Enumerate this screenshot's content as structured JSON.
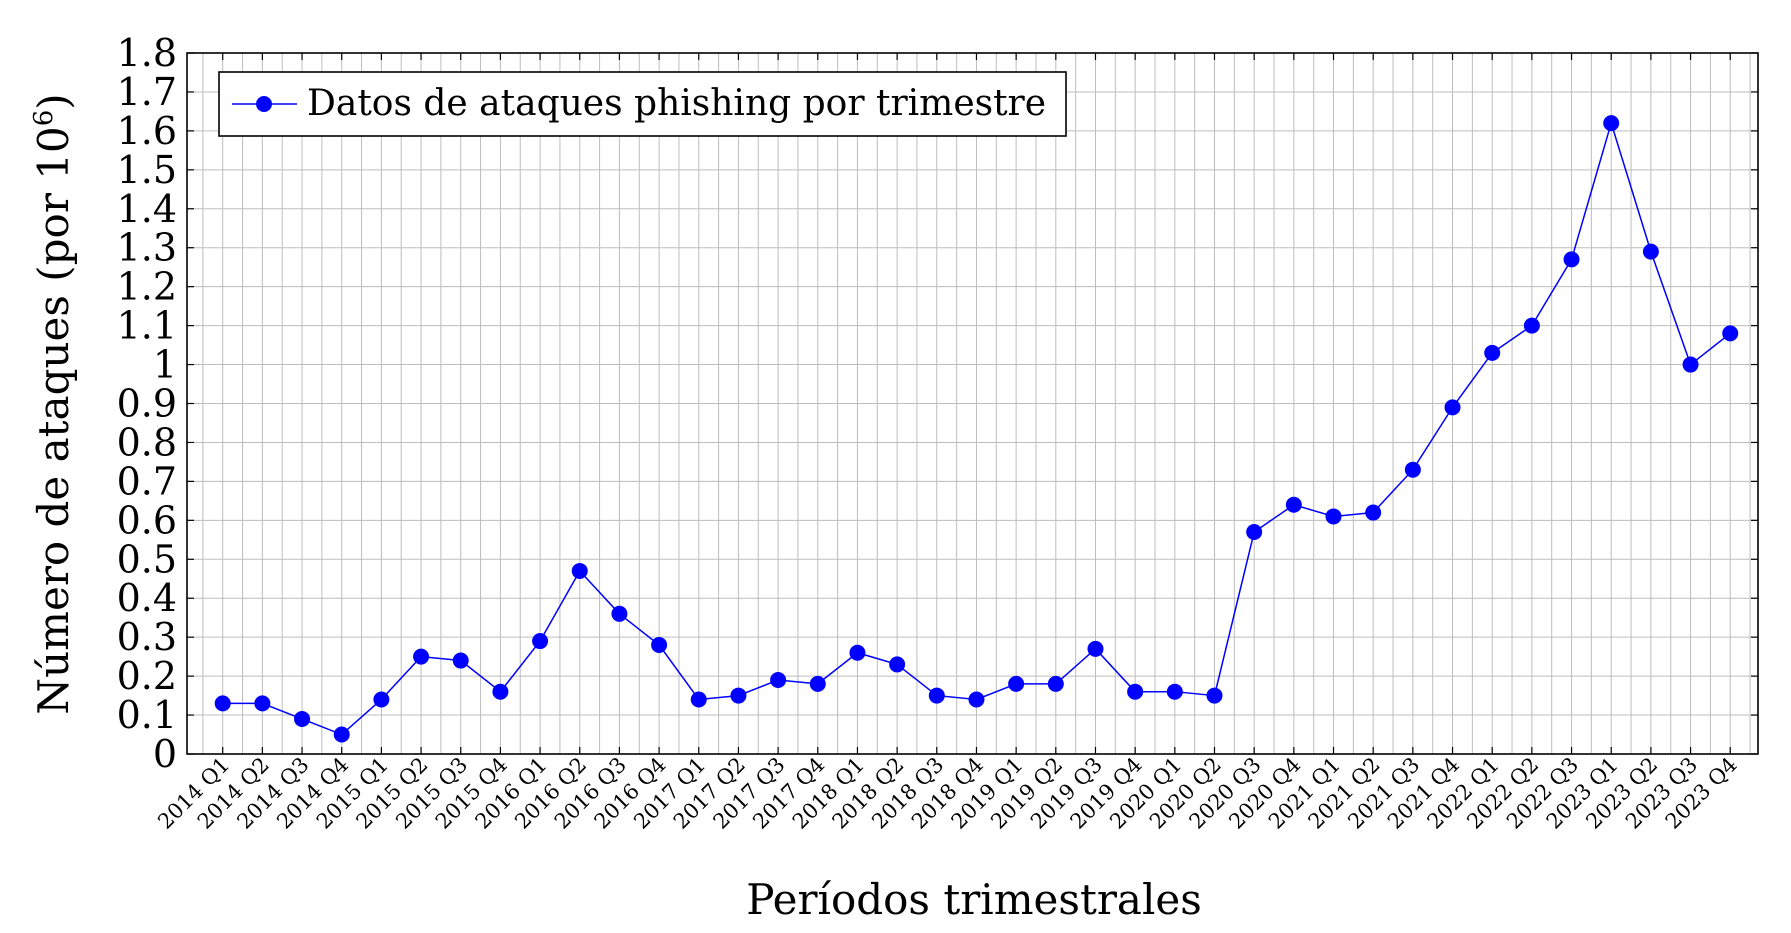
{
  "chart_data": {
    "type": "line",
    "title": "",
    "xlabel": "Períodos trimestrales",
    "ylabel": "Número de ataques (por 10⁶)",
    "ylabel_main": "Número de ataques (por 10",
    "ylabel_exp": "6",
    "ylabel_close": ")",
    "ylim": [
      0,
      1.8
    ],
    "yticks": [
      "0",
      "0.1",
      "0.2",
      "0.3",
      "0.4",
      "0.5",
      "0.6",
      "0.7",
      "0.8",
      "0.9",
      "1",
      "1.1",
      "1.2",
      "1.3",
      "1.4",
      "1.5",
      "1.6",
      "1.7",
      "1.8"
    ],
    "grid": true,
    "legend_position": "top-left",
    "color": "#0000ff",
    "categories": [
      "2014 Q1",
      "2014 Q2",
      "2014 Q3",
      "2014 Q4",
      "2015 Q1",
      "2015 Q2",
      "2015 Q3",
      "2015 Q4",
      "2016 Q1",
      "2016 Q2",
      "2016 Q3",
      "2016 Q4",
      "2017 Q1",
      "2017 Q2",
      "2017 Q3",
      "2017 Q4",
      "2018 Q1",
      "2018 Q2",
      "2018 Q3",
      "2018 Q4",
      "2019 Q1",
      "2019 Q2",
      "2019 Q3",
      "2019 Q4",
      "2020 Q1",
      "2020 Q2",
      "2020 Q3",
      "2020 Q4",
      "2021 Q1",
      "2021 Q2",
      "2021 Q3",
      "2021 Q4",
      "2022 Q1",
      "2022 Q2",
      "2022 Q3",
      "2023 Q1",
      "2023 Q2",
      "2023 Q3",
      "2023 Q4"
    ],
    "series": [
      {
        "name": "Datos de ataques phishing por trimestre",
        "values": [
          0.13,
          0.13,
          0.09,
          0.05,
          0.14,
          0.25,
          0.24,
          0.16,
          0.29,
          0.47,
          0.36,
          0.28,
          0.14,
          0.15,
          0.19,
          0.18,
          0.26,
          0.23,
          0.15,
          0.14,
          0.18,
          0.18,
          0.27,
          0.16,
          0.16,
          0.15,
          0.57,
          0.64,
          0.61,
          0.62,
          0.73,
          0.89,
          1.03,
          1.1,
          1.27,
          1.62,
          1.29,
          1.0,
          1.08
        ]
      }
    ]
  }
}
